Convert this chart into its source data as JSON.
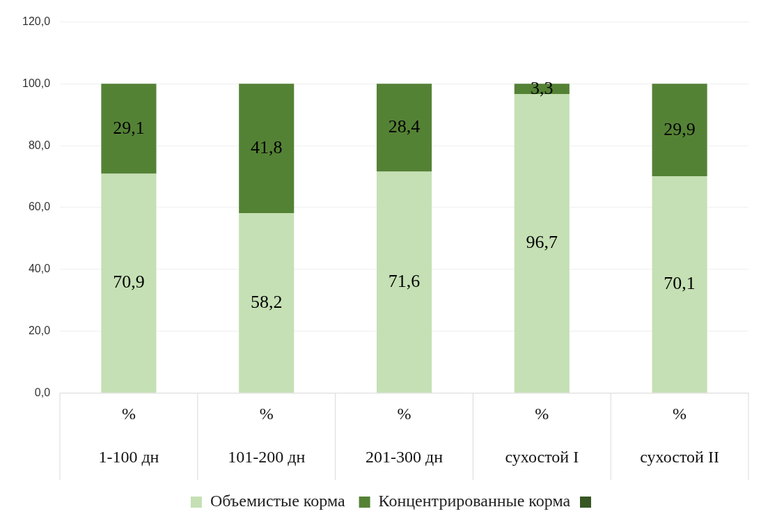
{
  "chart_data": {
    "type": "bar",
    "stacked": true,
    "categories": [
      "%\n1-100 дн",
      "%\n101-200 дн",
      "%\n201-300 дн",
      "%\nсухостой I",
      "%\nсухостой II"
    ],
    "series": [
      {
        "name": "Объемистые корма",
        "color": "#c5e0b4",
        "values": [
          70.9,
          58.2,
          71.6,
          96.7,
          70.1
        ],
        "value_labels": [
          "70,9",
          "58,2",
          "71,6",
          "96,7",
          "70,1"
        ]
      },
      {
        "name": "Концентрированные корма",
        "color": "#548235",
        "values": [
          29.1,
          41.8,
          28.4,
          3.3,
          29.9
        ],
        "value_labels": [
          "29,1",
          "41,8",
          "28,4",
          "3,3",
          "29,9"
        ]
      }
    ],
    "ylim": [
      0,
      120
    ],
    "yticks": [
      {
        "value": 0,
        "label": "0,0"
      },
      {
        "value": 20,
        "label": "20,0"
      },
      {
        "value": 40,
        "label": "40,0"
      },
      {
        "value": 60,
        "label": "60,0"
      },
      {
        "value": 80,
        "label": "80,0"
      },
      {
        "value": 100,
        "label": "100,0"
      },
      {
        "value": 120,
        "label": "120,0"
      }
    ],
    "grid": "y",
    "legend": "bottom"
  }
}
